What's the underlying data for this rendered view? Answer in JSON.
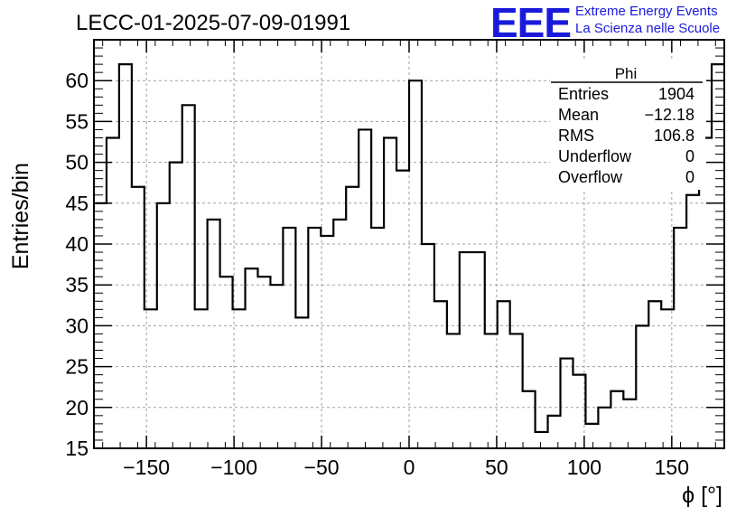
{
  "header": {
    "run_title": "LECC-01-2025-07-09-01991",
    "logo": "EEE",
    "logo_line1": "Extreme Energy Events",
    "logo_line2": "La Scienza nelle Scuole"
  },
  "stats_box": {
    "title": "Phi",
    "rows": [
      {
        "label": "Entries",
        "value": "1904"
      },
      {
        "label": "Mean",
        "value": "−12.18"
      },
      {
        "label": "RMS",
        "value": "106.8"
      },
      {
        "label": "Underflow",
        "value": "0"
      },
      {
        "label": "Overflow",
        "value": "0"
      }
    ]
  },
  "chart_data": {
    "type": "histogram",
    "xlabel": "ϕ [°]",
    "ylabel": "Entries/bin",
    "xlim": [
      -180,
      180
    ],
    "ylim": [
      15,
      65
    ],
    "bin_width": 7.2,
    "bin_start": -180,
    "x_ticks": [
      -150,
      -100,
      -50,
      0,
      50,
      100,
      150
    ],
    "x_tick_labels": [
      "−150",
      "−100",
      "−50",
      "0",
      "50",
      "100",
      "150"
    ],
    "y_ticks": [
      15,
      20,
      25,
      30,
      35,
      40,
      45,
      50,
      55,
      60
    ],
    "grid": true,
    "color": "#000000",
    "grid_color": "#a0a0a0",
    "values": [
      45,
      53,
      62,
      47,
      32,
      45,
      50,
      57,
      32,
      43,
      36,
      32,
      37,
      36,
      35,
      42,
      31,
      42,
      41,
      43,
      47,
      54,
      42,
      53,
      49,
      60,
      40,
      33,
      29,
      39,
      39,
      29,
      33,
      29,
      22,
      17,
      19,
      26,
      24,
      18,
      20,
      22,
      21,
      30,
      33,
      32,
      42,
      46,
      53,
      62
    ]
  }
}
